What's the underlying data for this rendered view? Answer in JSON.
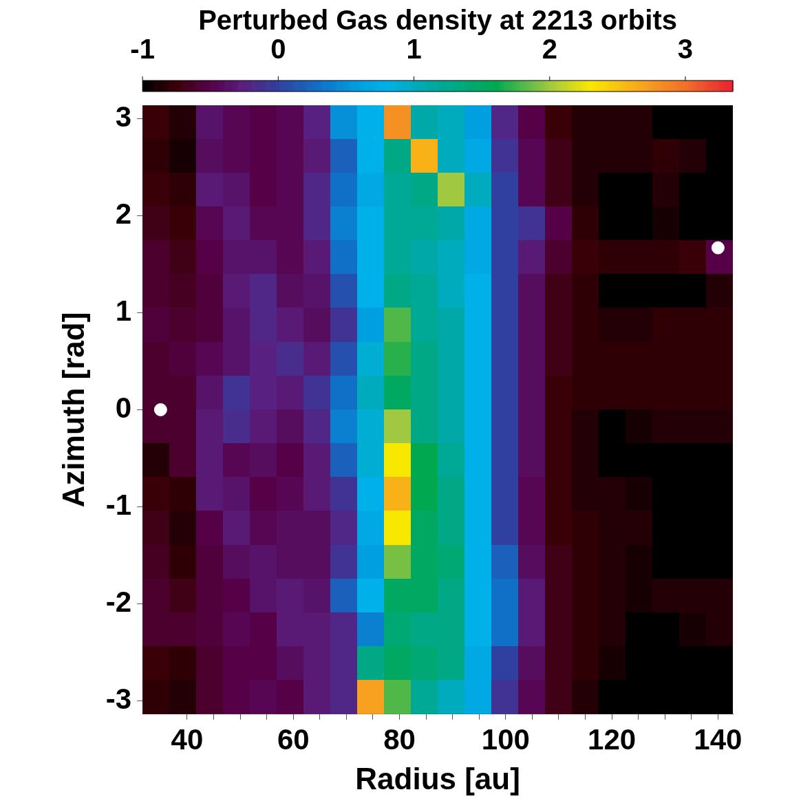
{
  "chart_data": {
    "type": "heatmap",
    "clabel": "Perturbed Gas density at 2213 orbits",
    "xlabel": "Radius [au]",
    "ylabel": "Azimuth [rad]",
    "xlim": [
      31.6,
      142.8
    ],
    "ylim": [
      -3.14,
      3.14
    ],
    "xticks": [
      40,
      {
        "value": 45,
        "label": null
      },
      {
        "value": 50,
        "label": null
      },
      {
        "value": 55,
        "label": null
      },
      60,
      {
        "value": 65,
        "label": null
      },
      {
        "value": 70,
        "label": null
      },
      {
        "value": 75,
        "label": null
      },
      80,
      {
        "value": 85,
        "label": null
      },
      {
        "value": 90,
        "label": null
      },
      {
        "value": 95,
        "label": null
      },
      100,
      {
        "value": 105,
        "label": null
      },
      {
        "value": 110,
        "label": null
      },
      {
        "value": 115,
        "label": null
      },
      120,
      {
        "value": 125,
        "label": null
      },
      {
        "value": 130,
        "label": null
      },
      {
        "value": 135,
        "label": null
      },
      140
    ],
    "yticks": [
      -3,
      -2,
      -1,
      0,
      1,
      2,
      3
    ],
    "clim": [
      -1,
      3.35
    ],
    "cticks": [
      -1,
      0,
      1,
      2,
      3
    ],
    "cells": [
      [
        -0.75,
        -0.85,
        -0.35,
        -0.45,
        -0.5,
        -0.45,
        -0.25,
        0.5,
        0.8,
        2.8,
        1.1,
        1.0,
        0.6,
        -0.2,
        -0.5,
        -0.75,
        -0.85,
        -0.85,
        -0.85,
        -1,
        -1,
        -1
      ],
      [
        -0.8,
        -0.9,
        -0.4,
        -0.45,
        -0.5,
        -0.45,
        -0.3,
        0.2,
        0.8,
        1.3,
        2.6,
        1.0,
        0.7,
        -0.1,
        -0.45,
        -0.7,
        -0.85,
        -0.85,
        -0.85,
        -0.8,
        -0.85,
        -1
      ],
      [
        -0.75,
        -0.8,
        -0.3,
        -0.35,
        -0.5,
        -0.45,
        -0.2,
        0.3,
        0.7,
        1.2,
        1.3,
        2.0,
        1.0,
        0,
        -0.45,
        -0.7,
        -0.85,
        -1,
        -1,
        -0.85,
        -1,
        -1
      ],
      [
        -0.7,
        -0.75,
        -0.45,
        -0.3,
        -0.45,
        -0.45,
        -0.2,
        0.4,
        0.8,
        1.2,
        1.2,
        1.1,
        0.7,
        0,
        -0.1,
        -0.5,
        -0.8,
        -1,
        -1,
        -0.9,
        -1,
        -1
      ],
      [
        -0.6,
        -0.7,
        -0.5,
        -0.35,
        -0.35,
        -0.45,
        -0.3,
        0.3,
        0.8,
        1.2,
        1.1,
        1.0,
        0.7,
        0,
        -0.3,
        -0.6,
        -0.75,
        -0.8,
        -0.8,
        -0.8,
        -0.75,
        -0.5
      ],
      [
        -0.6,
        -0.65,
        -0.55,
        -0.3,
        -0.2,
        -0.4,
        -0.35,
        0.1,
        0.8,
        1.3,
        1.2,
        1.0,
        0.8,
        0,
        -0.4,
        -0.7,
        -0.8,
        -1,
        -1,
        -1,
        -1,
        -0.85
      ],
      [
        -0.55,
        -0.6,
        -0.55,
        -0.35,
        -0.2,
        -0.3,
        -0.4,
        -0.1,
        0.6,
        1.8,
        1.2,
        1.1,
        0.8,
        0,
        -0.4,
        -0.7,
        -0.8,
        -0.85,
        -0.85,
        -0.8,
        -0.8,
        -0.8
      ],
      [
        -0.6,
        -0.55,
        -0.45,
        -0.35,
        -0.25,
        -0.15,
        -0.3,
        0.1,
        0.9,
        1.7,
        1.3,
        1.1,
        0.8,
        0,
        -0.4,
        -0.7,
        -0.8,
        -0.8,
        -0.8,
        -0.8,
        -0.8,
        -0.8
      ],
      [
        -0.6,
        -0.6,
        -0.35,
        -0.1,
        -0.25,
        -0.3,
        -0.1,
        0.3,
        1.0,
        1.5,
        1.3,
        1.1,
        0.8,
        0,
        -0.4,
        -0.75,
        -0.8,
        -0.8,
        -0.8,
        -0.8,
        -0.8,
        -0.8
      ],
      [
        -0.6,
        -0.6,
        -0.3,
        -0.15,
        -0.3,
        -0.4,
        -0.2,
        0.4,
        0.9,
        2.0,
        1.3,
        1.1,
        0.8,
        0,
        -0.4,
        -0.75,
        -0.85,
        -1,
        -0.9,
        -0.85,
        -0.85,
        -0.85
      ],
      [
        -0.85,
        -0.6,
        -0.3,
        -0.45,
        -0.4,
        -0.5,
        -0.3,
        0.2,
        0.9,
        2.3,
        1.6,
        1.2,
        0.8,
        0,
        -0.4,
        -0.75,
        -0.85,
        -1,
        -1,
        -1,
        -1,
        -1
      ],
      [
        -0.75,
        -0.8,
        -0.3,
        -0.35,
        -0.5,
        -0.45,
        -0.3,
        -0.1,
        0.8,
        2.6,
        1.6,
        1.3,
        0.8,
        0,
        -0.45,
        -0.75,
        -0.85,
        -0.85,
        -0.9,
        -1,
        -1,
        -1
      ],
      [
        -0.7,
        -0.85,
        -0.5,
        -0.3,
        -0.45,
        -0.4,
        -0.4,
        -0.2,
        0.7,
        2.3,
        1.5,
        1.3,
        0.8,
        0,
        -0.45,
        -0.75,
        -0.8,
        -0.85,
        -0.85,
        -1,
        -1,
        -1
      ],
      [
        -0.65,
        -0.8,
        -0.55,
        -0.4,
        -0.35,
        -0.4,
        -0.4,
        -0.1,
        0.6,
        1.9,
        1.5,
        1.4,
        0.8,
        0.2,
        -0.4,
        -0.7,
        -0.8,
        -0.85,
        -0.9,
        -1,
        -1,
        -1
      ],
      [
        -0.6,
        -0.7,
        -0.55,
        -0.5,
        -0.35,
        -0.3,
        -0.35,
        0.2,
        0.8,
        1.5,
        1.5,
        1.3,
        0.8,
        0.3,
        -0.3,
        -0.7,
        -0.8,
        -0.85,
        -0.9,
        -0.85,
        -0.85,
        -0.85
      ],
      [
        -0.6,
        -0.6,
        -0.55,
        -0.45,
        -0.5,
        -0.3,
        -0.3,
        -0.2,
        0.4,
        1.4,
        1.3,
        1.3,
        0.8,
        0.3,
        -0.3,
        -0.7,
        -0.8,
        -0.85,
        -1,
        -1,
        -0.9,
        -0.85
      ],
      [
        -0.75,
        -0.8,
        -0.6,
        -0.5,
        -0.5,
        -0.4,
        -0.3,
        -0.2,
        1.3,
        1.5,
        1.4,
        1.3,
        0.7,
        0,
        -0.4,
        -0.7,
        -0.8,
        -0.9,
        -1,
        -1,
        -1,
        -1
      ],
      [
        -0.8,
        -0.85,
        -0.6,
        -0.5,
        -0.45,
        -0.5,
        -0.3,
        -0.2,
        2.7,
        1.8,
        1.2,
        1.0,
        0.7,
        -0.1,
        -0.45,
        -0.7,
        -0.85,
        -1,
        -1,
        -1,
        -1,
        -1
      ]
    ],
    "series": [
      {
        "type": "scatter",
        "color": "#ffffff",
        "x": [
          35,
          140
        ],
        "values": [
          0,
          1.67
        ]
      }
    ]
  }
}
